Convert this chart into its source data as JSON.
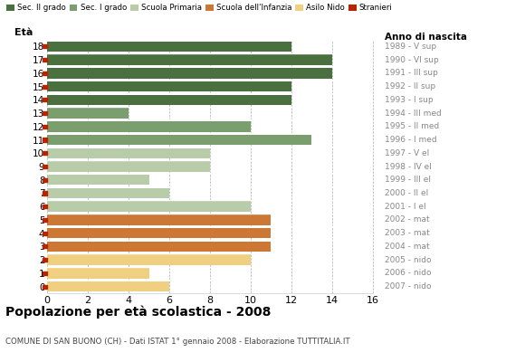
{
  "ages": [
    18,
    17,
    16,
    15,
    14,
    13,
    12,
    11,
    10,
    9,
    8,
    7,
    6,
    5,
    4,
    3,
    2,
    1,
    0
  ],
  "years": [
    "1989 - V sup",
    "1990 - VI sup",
    "1991 - III sup",
    "1992 - II sup",
    "1993 - I sup",
    "1994 - III med",
    "1995 - II med",
    "1996 - I med",
    "1997 - V el",
    "1998 - IV el",
    "1999 - III el",
    "2000 - II el",
    "2001 - I el",
    "2002 - mat",
    "2003 - mat",
    "2004 - mat",
    "2005 - nido",
    "2006 - nido",
    "2007 - nido"
  ],
  "values": [
    12,
    14,
    14,
    12,
    12,
    4,
    10,
    13,
    8,
    8,
    5,
    6,
    10,
    11,
    11,
    11,
    10,
    5,
    6
  ],
  "bar_colors": [
    "#4a7040",
    "#4a7040",
    "#4a7040",
    "#4a7040",
    "#4a7040",
    "#7a9e6e",
    "#7a9e6e",
    "#7a9e6e",
    "#b8ccaa",
    "#b8ccaa",
    "#b8ccaa",
    "#b8ccaa",
    "#b8ccaa",
    "#cc7733",
    "#cc7733",
    "#cc7733",
    "#f0d080",
    "#f0d080",
    "#f0d080"
  ],
  "stranieri_color": "#bb2200",
  "legend_labels": [
    "Sec. II grado",
    "Sec. I grado",
    "Scuola Primaria",
    "Scuola dell'Infanzia",
    "Asilo Nido",
    "Stranieri"
  ],
  "legend_colors": [
    "#4a7040",
    "#7a9e6e",
    "#b8ccaa",
    "#cc7733",
    "#f0d080",
    "#bb2200"
  ],
  "title": "Popolazione per età scolastica - 2008",
  "subtitle": "COMUNE DI SAN BUONO (CH) - Dati ISTAT 1° gennaio 2008 - Elaborazione TUTTITALIA.IT",
  "ylabel_left": "Età",
  "ylabel_right": "Anno di nascita",
  "xlim": [
    0,
    16
  ],
  "xticks": [
    0,
    2,
    4,
    6,
    8,
    10,
    12,
    14,
    16
  ],
  "background_color": "#ffffff",
  "grid_color": "#aaaaaa",
  "bar_height": 0.78
}
